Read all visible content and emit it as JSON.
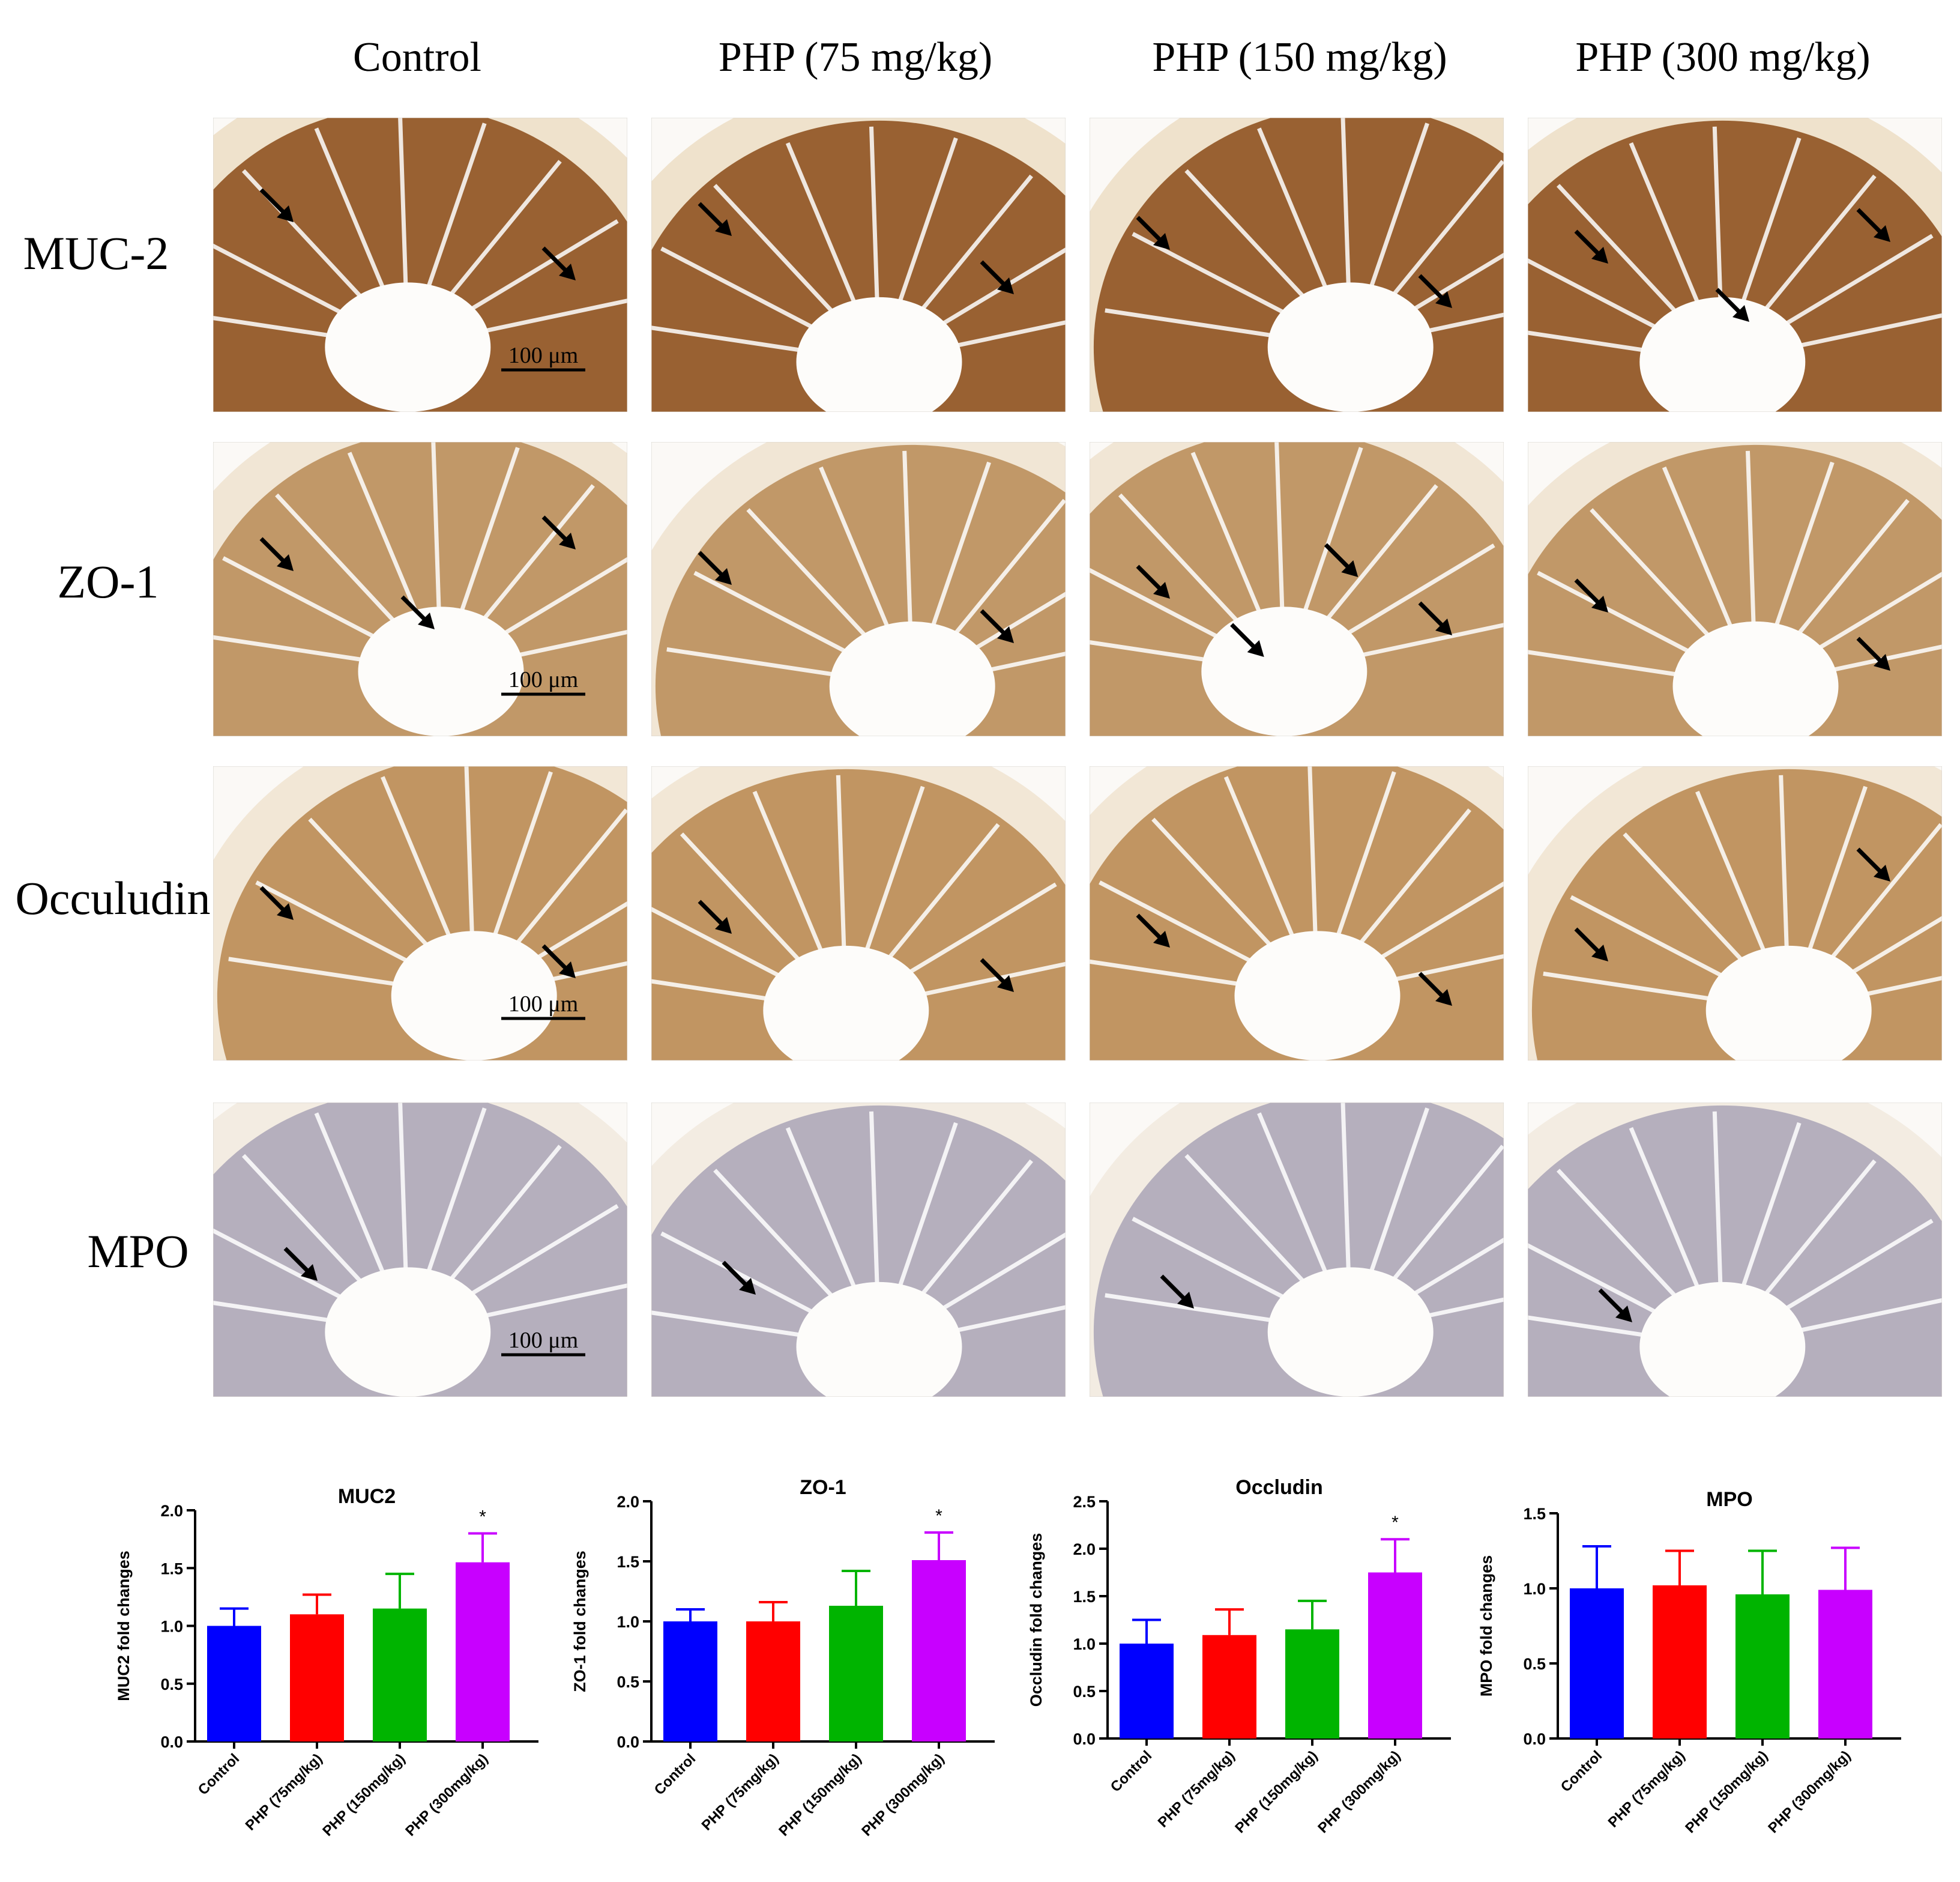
{
  "column_headers": [
    "Control",
    "PHP (75 mg/kg)",
    "PHP (150 mg/kg)",
    "PHP (300 mg/kg)"
  ],
  "row_labels": [
    "MUC-2",
    "ZO-1",
    "Occuludin",
    "MPO"
  ],
  "scale_bar_label": "100 μm",
  "micrographs": [
    {
      "row": "MUC-2",
      "stain_color": "#8a4a16",
      "tissue_color": "#efe2cc",
      "arrows": [
        2,
        2,
        2,
        3
      ]
    },
    {
      "row": "ZO-1",
      "stain_color": "#b88955",
      "tissue_color": "#f1e6d5",
      "arrows": [
        3,
        2,
        4,
        2
      ]
    },
    {
      "row": "Occuludin",
      "stain_color": "#b8864d",
      "tissue_color": "#f2e7d6",
      "arrows": [
        2,
        2,
        2,
        2
      ]
    },
    {
      "row": "MPO",
      "stain_color": "#a9a4b6",
      "tissue_color": "#f3ece2",
      "arrows": [
        1,
        1,
        1,
        1
      ]
    }
  ],
  "colors": {
    "Control": "#0000ff",
    "PHP (75mg/kg)": "#ff0000",
    "PHP (150mg/kg)": "#00b400",
    "PHP (300mg/kg)": "#c800ff"
  },
  "chart_data": [
    {
      "type": "bar",
      "title": "MUC2",
      "ylabel": "MUC2 fold changes",
      "categories": [
        "Control",
        "PHP (75mg/kg)",
        "PHP (150mg/kg)",
        "PHP (300mg/kg)"
      ],
      "values": [
        1.0,
        1.1,
        1.15,
        1.55
      ],
      "errors": [
        0.15,
        0.17,
        0.3,
        0.25
      ],
      "significance": [
        "",
        "",
        "",
        "*"
      ],
      "ylim": [
        0,
        2.0
      ],
      "yticks": [
        "0.0",
        "0.5",
        "1.0",
        "1.5",
        "2.0"
      ]
    },
    {
      "type": "bar",
      "title": "ZO-1",
      "ylabel": "ZO-1 fold changes",
      "categories": [
        "Control",
        "PHP (75mg/kg)",
        "PHP (150mg/kg)",
        "PHP (300mg/kg)"
      ],
      "values": [
        1.0,
        1.0,
        1.13,
        1.51
      ],
      "errors": [
        0.1,
        0.16,
        0.29,
        0.23
      ],
      "significance": [
        "",
        "",
        "",
        "*"
      ],
      "ylim": [
        0,
        2.0
      ],
      "yticks": [
        "0.0",
        "0.5",
        "1.0",
        "1.5",
        "2.0"
      ]
    },
    {
      "type": "bar",
      "title": "Occludin",
      "ylabel": "Occludin fold changes",
      "categories": [
        "Control",
        "PHP (75mg/kg)",
        "PHP (150mg/kg)",
        "PHP (300mg/kg)"
      ],
      "values": [
        1.0,
        1.09,
        1.15,
        1.75
      ],
      "errors": [
        0.25,
        0.27,
        0.3,
        0.35
      ],
      "significance": [
        "",
        "",
        "",
        "*"
      ],
      "ylim": [
        0,
        2.5
      ],
      "yticks": [
        "0.0",
        "0.5",
        "1.0",
        "1.5",
        "2.0",
        "2.5"
      ]
    },
    {
      "type": "bar",
      "title": "MPO",
      "ylabel": "MPO fold changes",
      "categories": [
        "Control",
        "PHP (75mg/kg)",
        "PHP (150mg/kg)",
        "PHP (300mg/kg)"
      ],
      "values": [
        1.0,
        1.02,
        0.96,
        0.99
      ],
      "errors": [
        0.28,
        0.23,
        0.29,
        0.28
      ],
      "significance": [
        "",
        "",
        "",
        ""
      ],
      "ylim": [
        0,
        1.5
      ],
      "yticks": [
        "0.0",
        "0.5",
        "1.0",
        "1.5"
      ]
    }
  ]
}
